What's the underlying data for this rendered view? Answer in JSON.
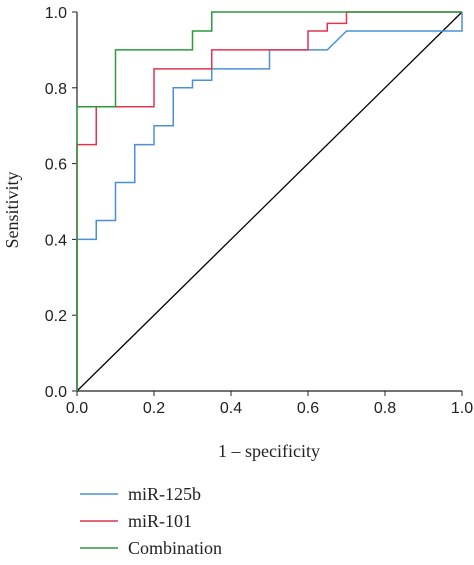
{
  "chart_data": {
    "type": "line",
    "title": "",
    "xlabel": "1 – specificity",
    "ylabel": "Sensitivity",
    "xlim": [
      0,
      1
    ],
    "ylim": [
      0,
      1
    ],
    "x_ticks": [
      "0.0",
      "0.2",
      "0.4",
      "0.6",
      "0.8",
      "1.0"
    ],
    "y_ticks": [
      "0.0",
      "0.2",
      "0.4",
      "0.6",
      "0.8",
      "1.0"
    ],
    "grid": false,
    "legend_position": "bottom-left",
    "reference_line": {
      "x": [
        0,
        1
      ],
      "y": [
        0,
        1
      ],
      "color": "#000000"
    },
    "series": [
      {
        "name": "miR-125b",
        "color": "#4a90d9",
        "x": [
          0,
          0,
          0.05,
          0.05,
          0.1,
          0.1,
          0.15,
          0.15,
          0.2,
          0.2,
          0.25,
          0.25,
          0.3,
          0.3,
          0.35,
          0.35,
          0.5,
          0.5,
          0.65,
          0.7,
          1.0,
          1.0
        ],
        "y": [
          0,
          0.4,
          0.4,
          0.45,
          0.45,
          0.55,
          0.55,
          0.65,
          0.65,
          0.7,
          0.7,
          0.8,
          0.8,
          0.82,
          0.82,
          0.85,
          0.85,
          0.9,
          0.9,
          0.95,
          0.95,
          1.0
        ]
      },
      {
        "name": "miR-101",
        "color": "#e0344f",
        "x": [
          0,
          0,
          0.05,
          0.05,
          0.2,
          0.2,
          0.35,
          0.35,
          0.6,
          0.6,
          0.65,
          0.65,
          0.7,
          0.7,
          1.0
        ],
        "y": [
          0,
          0.65,
          0.65,
          0.75,
          0.75,
          0.85,
          0.85,
          0.9,
          0.9,
          0.95,
          0.95,
          0.97,
          0.97,
          1.0,
          1.0
        ]
      },
      {
        "name": "Combination",
        "color": "#2a9a3e",
        "x": [
          0,
          0,
          0.1,
          0.1,
          0.3,
          0.3,
          0.35,
          0.35,
          1.0
        ],
        "y": [
          0,
          0.75,
          0.75,
          0.9,
          0.9,
          0.95,
          0.95,
          1.0,
          1.0
        ]
      }
    ]
  }
}
